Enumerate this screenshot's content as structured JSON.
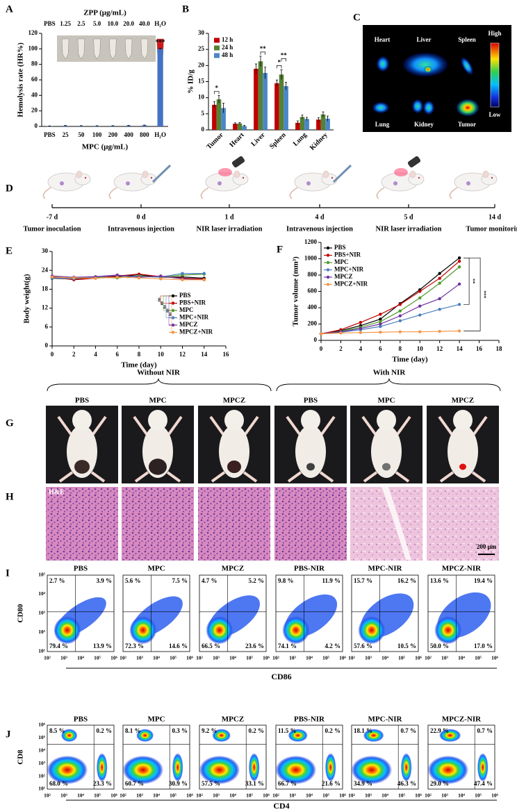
{
  "panel_labels": [
    "A",
    "B",
    "C",
    "D",
    "E",
    "F",
    "G",
    "H",
    "I",
    "J"
  ],
  "chart_data": [
    {
      "type": "bar",
      "top_axis_label": "ZPP (μg/mL)",
      "top_categories": [
        "PBS",
        "1.25",
        "2.5",
        "5.0",
        "10.0",
        "20.0",
        "40.0",
        "H₂O"
      ],
      "categories": [
        "PBS",
        "25",
        "50",
        "100",
        "200",
        "400",
        "800",
        "H₂O"
      ],
      "values": [
        0.3,
        0.8,
        0.7,
        0.6,
        0.7,
        0.9,
        1.2,
        99.8
      ],
      "errors": [
        0.3,
        0.4,
        0.3,
        0.3,
        0.3,
        0.4,
        0.5,
        0.8
      ],
      "color": "#4472c4",
      "ylabel": "Hemolysis rate (HR%)",
      "xlabel": "MPC (μg/mL)",
      "ylim": [
        0,
        120
      ],
      "yticks": [
        0,
        20,
        40,
        60,
        80,
        100,
        120
      ],
      "annotations": [
        "***"
      ]
    },
    {
      "type": "grouped_bar",
      "categories": [
        "Tumor",
        "Heart",
        "Liver",
        "Spleen",
        "Lung",
        "Kidney"
      ],
      "series": [
        {
          "name": "12 h",
          "color": "#c00000",
          "values": [
            7.8,
            1.9,
            19,
            14.5,
            2.2,
            3.2
          ],
          "errors": [
            1.0,
            0.3,
            1.5,
            1.0,
            0.6,
            0.6
          ]
        },
        {
          "name": "24 h",
          "color": "#548235",
          "values": [
            9.5,
            2.0,
            21.3,
            17.2,
            4.0,
            4.8
          ],
          "errors": [
            1.2,
            0.3,
            1.6,
            1.5,
            0.6,
            0.8
          ]
        },
        {
          "name": "48 h",
          "color": "#4a86c8",
          "values": [
            6.8,
            1.2,
            17.7,
            13.6,
            3.4,
            3.5
          ],
          "errors": [
            1.5,
            0.2,
            1.8,
            1.2,
            0.5,
            0.8
          ]
        }
      ],
      "ylabel": "% ID/g",
      "ylim": [
        0,
        30
      ],
      "yticks": [
        0,
        5,
        10,
        15,
        20,
        25,
        30
      ],
      "legend": "top-left",
      "annotations": [
        "*",
        "**",
        "*",
        "**"
      ]
    },
    {
      "type": "line",
      "x": [
        0,
        2,
        4,
        6,
        8,
        10,
        12,
        14
      ],
      "series": [
        {
          "name": "PBS",
          "color": "#000000",
          "values": [
            21.5,
            21.2,
            21.6,
            22.0,
            22.6,
            21.8,
            21.9,
            21.5
          ]
        },
        {
          "name": "PBS+NIR",
          "color": "#c00000",
          "values": [
            21.8,
            21.0,
            21.5,
            22.2,
            22.8,
            22.0,
            21.5,
            21.2
          ]
        },
        {
          "name": "MPC",
          "color": "#4e9a2a",
          "values": [
            22.0,
            21.5,
            21.8,
            21.6,
            22.2,
            21.8,
            22.5,
            22.8
          ]
        },
        {
          "name": "MPC+NIR",
          "color": "#4a7ebb",
          "values": [
            21.6,
            21.3,
            21.9,
            22.4,
            22.0,
            21.9,
            23.0,
            23.0
          ]
        },
        {
          "name": "MPCZ",
          "color": "#7030a0",
          "values": [
            22.2,
            21.8,
            22.0,
            22.5,
            21.8,
            22.2,
            21.3,
            21.0
          ]
        },
        {
          "name": "MPCZ+NIR",
          "color": "#f79646",
          "values": [
            21.9,
            21.6,
            21.5,
            21.8,
            21.6,
            21.3,
            21.0,
            21.0
          ]
        }
      ],
      "xlabel": "Time (day)",
      "ylabel": "Body weight(g)",
      "xlim": [
        0,
        16
      ],
      "xticks": [
        0,
        2,
        4,
        6,
        8,
        10,
        12,
        14,
        16
      ],
      "ylim": [
        0,
        30
      ],
      "yticks": [
        0,
        6,
        12,
        18,
        24,
        30
      ],
      "legend": "center-right",
      "annotations": [
        "ns",
        "ns",
        "ns",
        "ns",
        "ns"
      ]
    },
    {
      "type": "line",
      "x": [
        0,
        2,
        4,
        6,
        8,
        10,
        12,
        14
      ],
      "series": [
        {
          "name": "PBS",
          "color": "#000000",
          "values": [
            80,
            120,
            180,
            260,
            450,
            620,
            820,
            1010
          ]
        },
        {
          "name": "PBS+NIR",
          "color": "#c00000",
          "values": [
            80,
            130,
            220,
            320,
            440,
            600,
            760,
            970
          ]
        },
        {
          "name": "MPC",
          "color": "#4e9a2a",
          "values": [
            80,
            110,
            160,
            230,
            360,
            520,
            700,
            900
          ]
        },
        {
          "name": "MPC+NIR",
          "color": "#4a7ebb",
          "values": [
            80,
            100,
            130,
            170,
            240,
            310,
            380,
            440
          ]
        },
        {
          "name": "MPCZ",
          "color": "#7030a0",
          "values": [
            80,
            105,
            145,
            200,
            300,
            420,
            510,
            690
          ]
        },
        {
          "name": "MPCZ+NIR",
          "color": "#f79646",
          "values": [
            80,
            90,
            95,
            100,
            105,
            105,
            110,
            115
          ]
        }
      ],
      "xlabel": "Time (day)",
      "ylabel": "Tumor volume (mm³)",
      "xlim": [
        0,
        18
      ],
      "xticks": [
        0,
        2,
        4,
        6,
        8,
        10,
        12,
        14,
        16,
        18
      ],
      "ylim": [
        0,
        1200
      ],
      "yticks": [
        0,
        200,
        400,
        600,
        800,
        1000,
        1200
      ],
      "legend": "top-left",
      "annotations": [
        "**",
        "***"
      ]
    }
  ],
  "imaging": {
    "organs": [
      "Heart",
      "Liver",
      "Spleen",
      "Lung",
      "Kidney",
      "Tumor"
    ],
    "scale_high": "High",
    "scale_low": "Low"
  },
  "timeline": {
    "days": [
      "-7 d",
      "0 d",
      "1 d",
      "4 d",
      "5 d",
      "14 d"
    ],
    "events": [
      "Tumor inoculation",
      "Intravenous injection",
      "NIR laser irradiation",
      "Intravenous injection",
      "NIR laser irradiation",
      "Tumor monitoring"
    ]
  },
  "photos": {
    "without_nir": "Without NIR",
    "with_nir": "With NIR",
    "groups": [
      "PBS",
      "MPC",
      "MPCZ",
      "PBS",
      "MPC",
      "MPCZ"
    ]
  },
  "histology": {
    "stain": "H&E",
    "scale_bar": "200 μm"
  },
  "flow": [
    {
      "groups": [
        "PBS",
        "MPC",
        "MPCZ",
        "PBS-NIR",
        "MPC-NIR",
        "MPCZ-NIR"
      ],
      "quadrants": [
        [
          "2.7 %",
          "3.9 %",
          "79.4 %",
          "13.9 %"
        ],
        [
          "5.6 %",
          "7.5 %",
          "72.3 %",
          "14.6 %"
        ],
        [
          "4.7 %",
          "5.2 %",
          "66.5 %",
          "23.6 %"
        ],
        [
          "9.8 %",
          "11.9 %",
          "74.1 %",
          "4.2 %"
        ],
        [
          "15.7 %",
          "16.2 %",
          "57.6 %",
          "10.5 %"
        ],
        [
          "13.6 %",
          "19.4 %",
          "50.0 %",
          "17.0 %"
        ]
      ],
      "ylabel": "CD80",
      "xlabel": "CD86",
      "yticks": [
        "10⁵",
        "10⁴",
        "10³",
        "10²",
        "10¹"
      ],
      "xticks": [
        "10²",
        "10³",
        "10⁴",
        "10⁵",
        "10⁶"
      ]
    },
    {
      "groups": [
        "PBS",
        "MPC",
        "MPCZ",
        "PBS-NIR",
        "MPC-NIR",
        "MPCZ-NIR"
      ],
      "quadrants": [
        [
          "8.5 %",
          "0.2 %",
          "68.0 %",
          "23.3 %"
        ],
        [
          "8.1 %",
          "0.3 %",
          "60.7 %",
          "30.9 %"
        ],
        [
          "9.2 %",
          "0.2 %",
          "57.5 %",
          "33.1 %"
        ],
        [
          "11.5 %",
          "0.2 %",
          "66.7 %",
          "21.6 %"
        ],
        [
          "18.1 %",
          "0.7 %",
          "34.9 %",
          "46.3 %"
        ],
        [
          "22.9 %",
          "0.7 %",
          "29.0 %",
          "47.4 %"
        ]
      ],
      "ylabel": "CD8",
      "xlabel": "CD4",
      "yticks": [
        "10⁶",
        "10⁵",
        "10⁴",
        "10³",
        "10²",
        "10¹"
      ],
      "xticks": [
        "10²",
        "10³",
        "10⁴",
        "10⁵",
        "10⁶"
      ]
    }
  ]
}
